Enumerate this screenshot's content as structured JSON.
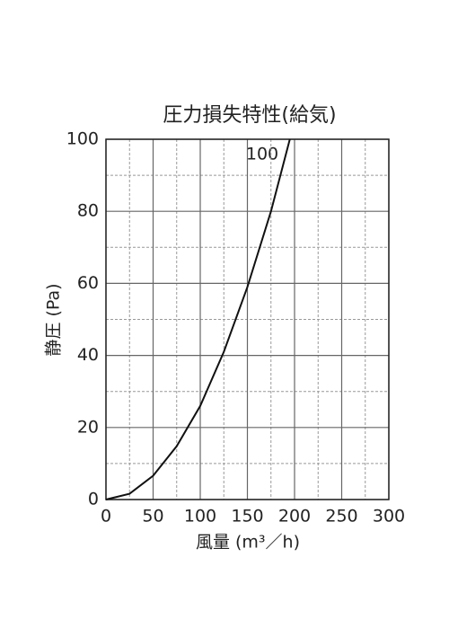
{
  "chart_data": {
    "type": "line",
    "title": "圧力損失特性(給気)",
    "xlabel": "風量 (m³／h)",
    "ylabel": "静圧 (Pa)",
    "annotation": "100",
    "x": [
      0,
      25,
      50,
      75,
      100,
      125,
      150,
      175,
      195
    ],
    "series": [
      {
        "name": "100",
        "color": "#111",
        "values": [
          0,
          1.6,
          6.6,
          14.8,
          26,
          41,
          59,
          80,
          100
        ]
      }
    ],
    "xlim": [
      0,
      300
    ],
    "ylim": [
      0,
      100
    ],
    "xticks": [
      0,
      50,
      100,
      150,
      200,
      250,
      300
    ],
    "yticks": [
      0,
      20,
      40,
      60,
      80,
      100
    ],
    "xminorticks": [
      25,
      75,
      125,
      175,
      225,
      275
    ],
    "yminorticks": [
      10,
      30,
      50,
      70,
      90
    ],
    "grid": true
  }
}
